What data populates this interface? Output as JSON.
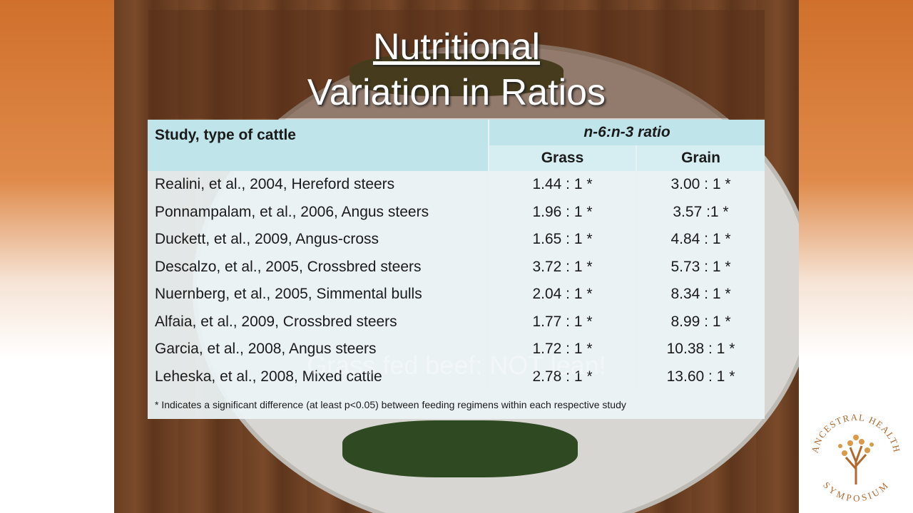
{
  "slide": {
    "title_line1": "Nutritional",
    "title_line2": "Variation in Ratios",
    "table": {
      "header": {
        "study": "Study, type of cattle",
        "ratio": "n-6:n-3 ratio",
        "grass": "Grass",
        "grain": "Grain"
      },
      "rows": [
        [
          "Realini, et al., 2004, Hereford steers",
          "1.44 : 1 *",
          "3.00 : 1 *"
        ],
        [
          "Ponnampalam, et al., 2006, Angus steers",
          "1.96 : 1 *",
          "3.57 :1 *"
        ],
        [
          "Duckett, et al., 2009, Angus-cross",
          "1.65 : 1 *",
          "4.84 : 1 *"
        ],
        [
          "Descalzo, et al., 2005, Crossbred steers",
          "3.72 : 1 *",
          "5.73 : 1 *"
        ],
        [
          "Nuernberg, et al., 2005, Simmental bulls",
          "2.04 : 1 *",
          "8.34 : 1 *"
        ],
        [
          "Alfaia, et al., 2009, Crossbred steers",
          "1.77 : 1 *",
          "8.99 : 1 *"
        ],
        [
          "Garcia, et al., 2008, Angus steers",
          "1.72 : 1 *",
          "10.38 : 1 *"
        ],
        [
          "Leheska, et al., 2008, Mixed cattle",
          "2.78 : 1 *",
          "13.60 : 1 *"
        ]
      ],
      "footnote": "* Indicates a significant difference (at least p<0.05) between feeding regimens within each respective study"
    },
    "caption": "Grass fed beef: NOT lean!"
  },
  "logo": {
    "top": "ANCESTRAL HEALTH",
    "bottom": "SYMPOSIUM"
  }
}
